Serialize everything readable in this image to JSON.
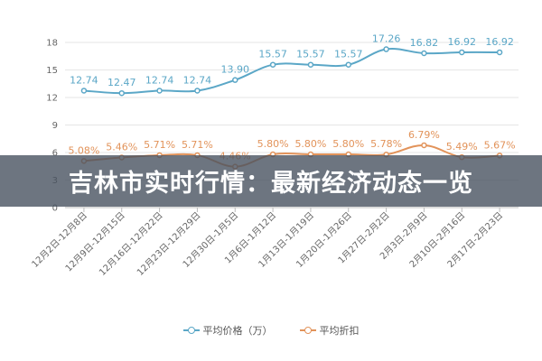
{
  "banner": {
    "title": "吉林市实时行情：最新经济动态一览"
  },
  "chart_data": {
    "type": "line",
    "categories": [
      "12月2日-12月8日",
      "12月9日-12月15日",
      "12月16日-12月22日",
      "12月23日-12月29日",
      "12月30日-1月5日",
      "1月6日-1月12日",
      "1月13日-1月19日",
      "1月20日-1月26日",
      "1月27日-2月2日",
      "2月3日-2月9日",
      "2月10日-2月16日",
      "2月17日-2月23日"
    ],
    "ylim": [
      0,
      18
    ],
    "yticks": [
      0,
      3,
      6,
      9,
      12,
      15,
      18
    ],
    "grid": "horizontal",
    "legend_position": "bottom",
    "series": [
      {
        "name": "平均价格（万）",
        "color": "#5ba7c7",
        "values": [
          12.74,
          12.47,
          12.74,
          12.74,
          13.9,
          15.57,
          15.57,
          15.57,
          17.26,
          16.82,
          16.92,
          16.92
        ],
        "labels": [
          "12.74",
          "12.47",
          "12.74",
          "12.74",
          "13.90",
          "15.57",
          "15.57",
          "15.57",
          "17.26",
          "16.82",
          "16.92",
          "16.92"
        ]
      },
      {
        "name": "平均折扣",
        "color": "#e2935a",
        "values": [
          5.08,
          5.46,
          5.71,
          5.71,
          4.46,
          5.8,
          5.8,
          5.8,
          5.78,
          6.79,
          5.49,
          5.67
        ],
        "labels": [
          "5.08%",
          "5.46%",
          "5.71%",
          "5.71%",
          "4.46%",
          "5.80%",
          "5.80%",
          "5.80%",
          "5.78%",
          "6.79%",
          "5.49%",
          "5.67%"
        ]
      }
    ]
  }
}
